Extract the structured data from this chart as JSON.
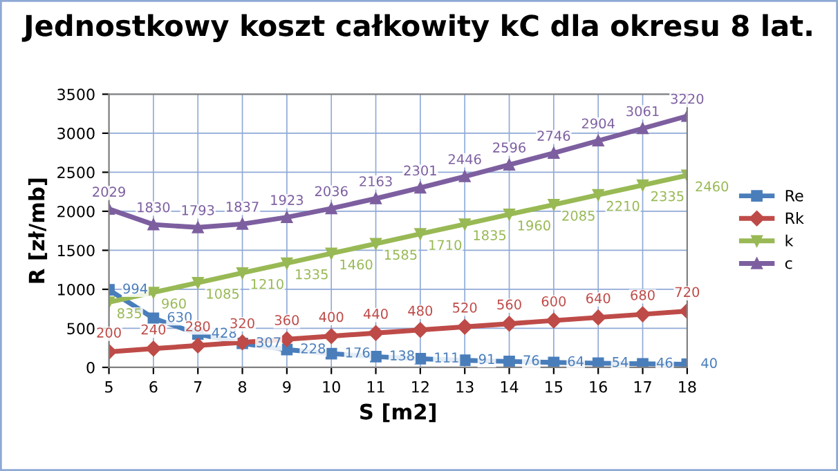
{
  "chart_data": {
    "type": "line",
    "title": "Jednostkowy koszt całkowity kC dla okresu 8 lat.",
    "xlabel": "S [m2]",
    "ylabel": "R [zł/mb]",
    "x": [
      5,
      6,
      7,
      8,
      9,
      10,
      11,
      12,
      13,
      14,
      15,
      16,
      17,
      18
    ],
    "xlim": [
      5,
      18
    ],
    "xticks": [
      5,
      6,
      7,
      8,
      9,
      10,
      11,
      12,
      13,
      14,
      15,
      16,
      17,
      18
    ],
    "ylim": [
      0,
      3500
    ],
    "yticks": [
      0,
      500,
      1000,
      1500,
      2000,
      2500,
      3000,
      3500
    ],
    "grid": true,
    "legend": "right",
    "data_labels": true,
    "series": [
      {
        "name": "Re",
        "color": "#4a7ebb",
        "marker": "square",
        "values": [
          994,
          630,
          428,
          307,
          228,
          176,
          138,
          111,
          91,
          76,
          64,
          54,
          46,
          40
        ]
      },
      {
        "name": "Rk",
        "color": "#be4b48",
        "marker": "diamond",
        "values": [
          200,
          240,
          280,
          320,
          360,
          400,
          440,
          480,
          520,
          560,
          600,
          640,
          680,
          720
        ]
      },
      {
        "name": "k",
        "color": "#98b954",
        "marker": "triangle_down",
        "values": [
          835,
          960,
          1085,
          1210,
          1335,
          1460,
          1585,
          1710,
          1835,
          1960,
          2085,
          2210,
          2335,
          2460
        ]
      },
      {
        "name": "c",
        "color": "#7d5fa0",
        "marker": "triangle",
        "values": [
          2029,
          1830,
          1793,
          1837,
          1923,
          2036,
          2163,
          2301,
          2446,
          2596,
          2746,
          2904,
          3061,
          3220
        ]
      }
    ]
  }
}
